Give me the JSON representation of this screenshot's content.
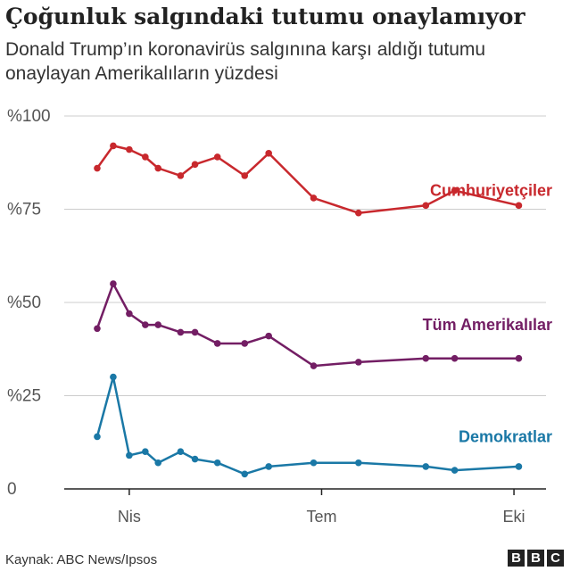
{
  "title": "Çoğunluk salgındaki tutumu onaylamıyor",
  "subtitle": "Donald Trump’ın koronavirüs salgınına karşı aldığı tutumu onaylayan Amerikalıların yüzdesi",
  "source": "Kaynak: ABC News/Ipsos",
  "logo": {
    "letters": [
      "B",
      "B",
      "C"
    ]
  },
  "colors": {
    "grid": "#cccccc",
    "axis": "#222222",
    "text": "#555555"
  },
  "chart_data": {
    "type": "line",
    "x_labels": [
      {
        "x": 3.5,
        "label": "Nis"
      },
      {
        "x": 15.5,
        "label": "Tem"
      },
      {
        "x": 27.5,
        "label": "Eki"
      }
    ],
    "xlim": [
      0,
      29.5
    ],
    "ylim": [
      0,
      100
    ],
    "y_ticks": [
      {
        "value": 0,
        "label": "0"
      },
      {
        "value": 25,
        "label": "%25"
      },
      {
        "value": 50,
        "label": "%50"
      },
      {
        "value": 75,
        "label": "%75"
      },
      {
        "value": 100,
        "label": "%100"
      }
    ],
    "grid": true,
    "series": [
      {
        "name": "Cumhuriyetçiler",
        "color": "#c8282d",
        "label_at": 80,
        "points": [
          [
            1.5,
            86
          ],
          [
            2.5,
            92
          ],
          [
            3.5,
            91
          ],
          [
            4.5,
            89
          ],
          [
            5.3,
            86
          ],
          [
            6.7,
            84
          ],
          [
            7.6,
            87
          ],
          [
            9.0,
            89
          ],
          [
            10.7,
            84
          ],
          [
            12.2,
            90
          ],
          [
            15.0,
            78
          ],
          [
            17.8,
            74
          ],
          [
            22.0,
            76
          ],
          [
            23.8,
            80
          ],
          [
            27.8,
            76
          ]
        ]
      },
      {
        "name": "Tüm Amerikalılar",
        "color": "#731e64",
        "label_at": 44,
        "points": [
          [
            1.5,
            43
          ],
          [
            2.5,
            55
          ],
          [
            3.5,
            47
          ],
          [
            4.5,
            44
          ],
          [
            5.3,
            44
          ],
          [
            6.7,
            42
          ],
          [
            7.6,
            42
          ],
          [
            9.0,
            39
          ],
          [
            10.7,
            39
          ],
          [
            12.2,
            41
          ],
          [
            15.0,
            33
          ],
          [
            17.8,
            34
          ],
          [
            22.0,
            35
          ],
          [
            23.8,
            35
          ],
          [
            27.8,
            35
          ]
        ]
      },
      {
        "name": "Demokratlar",
        "color": "#1a78a6",
        "label_at": 14,
        "points": [
          [
            1.5,
            14
          ],
          [
            2.5,
            30
          ],
          [
            3.5,
            9
          ],
          [
            4.5,
            10
          ],
          [
            5.3,
            7
          ],
          [
            6.7,
            10
          ],
          [
            7.6,
            8
          ],
          [
            9.0,
            7
          ],
          [
            10.7,
            4
          ],
          [
            12.2,
            6
          ],
          [
            15.0,
            7
          ],
          [
            17.8,
            7
          ],
          [
            22.0,
            6
          ],
          [
            23.8,
            5
          ],
          [
            27.8,
            6
          ]
        ]
      }
    ]
  }
}
